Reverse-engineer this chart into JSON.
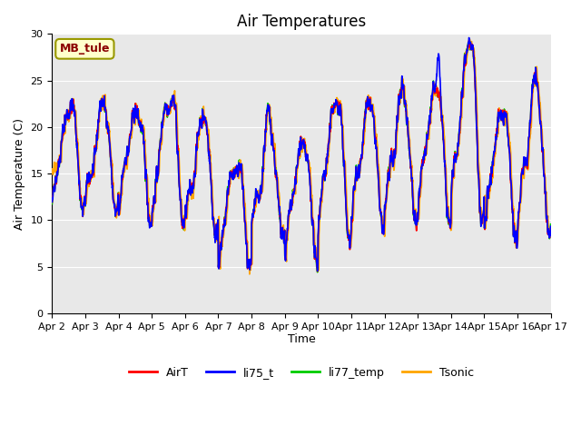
{
  "title": "Air Temperatures",
  "xlabel": "Time",
  "ylabel": "Air Temperature (C)",
  "ylim": [
    0,
    30
  ],
  "yticks": [
    0,
    5,
    10,
    15,
    20,
    25,
    30
  ],
  "annotation_text": "MB_tule",
  "annotation_color": "#8B0000",
  "annotation_bg": "#FFFFCC",
  "bg_color": "#E8E8E8",
  "series_colors": {
    "AirT": "#FF0000",
    "li75_t": "#0000FF",
    "li77_temp": "#00CC00",
    "Tsonic": "#FFA500"
  },
  "lw": 1.2,
  "num_days": 15,
  "points_per_day": 144,
  "grid_color": "#FFFFFF",
  "legend_fontsize": 9,
  "title_fontsize": 12,
  "fig_bg": "#FFFFFF",
  "plot_bg": "#E8E8E8"
}
